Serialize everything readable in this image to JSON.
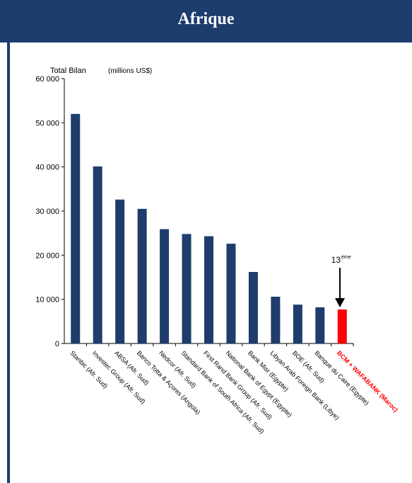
{
  "header": {
    "title": "Afrique"
  },
  "colors": {
    "header": "#1d3c6e",
    "bar": "#1f3d6c",
    "highlight": "#ff0000",
    "axis": "#000000"
  },
  "annotation": {
    "rank": "13",
    "rank_suffix": "ème"
  },
  "chart_data": {
    "type": "bar",
    "title": "",
    "ylabel": "Total Bilan",
    "ylabel_unit": "(millions US$)",
    "xlabel": "",
    "ylim": [
      0,
      60000
    ],
    "yticks": [
      "0",
      "10 000",
      "20 000",
      "30 000",
      "40 000",
      "50 000",
      "60 000"
    ],
    "ytick_values": [
      0,
      10000,
      20000,
      30000,
      40000,
      50000,
      60000
    ],
    "grid": false,
    "legend": "none",
    "categories": [
      "Stanbic (Afr. Sud)",
      "Investec Group (Afr. Sud)",
      "ABSA (Afr. Sud)",
      "Banco Totta & Açores (Angola)",
      "Nedcor (Afr. Sud)",
      "Standard Bank of South Africa (Afr. Sud)",
      "First Rand Bank Group (Afr. Sud)",
      "National Bank of Egypt (Egypte)",
      "Bank Misr (Egypte)",
      "Libyan Arab Foreign Bank (Libye)",
      "BOE (Afr. Sud)",
      "Banque du Caire (Egypte)",
      "BCM + WAFABANK (Maroc)"
    ],
    "values": [
      52000,
      40100,
      32600,
      30500,
      25900,
      24800,
      24300,
      22600,
      16200,
      10600,
      8800,
      8200,
      7700
    ],
    "highlight_index": 12
  }
}
